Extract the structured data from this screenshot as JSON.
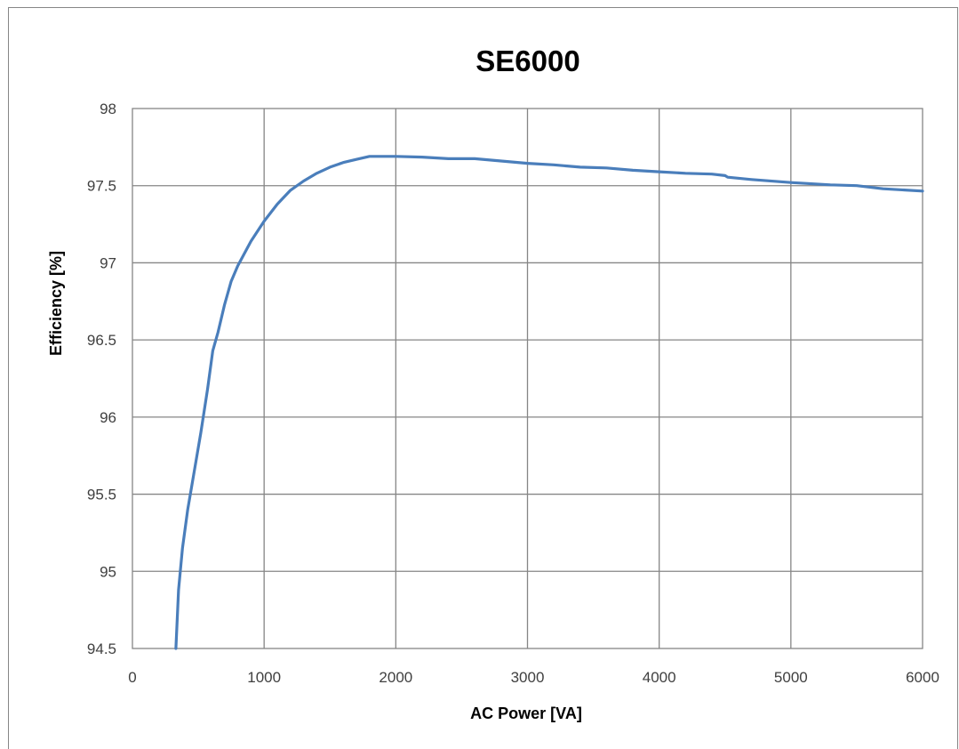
{
  "chart_data": {
    "type": "line",
    "title": "SE6000",
    "xlabel": "AC Power [VA]",
    "ylabel": "Efficiency [%]",
    "xlim": [
      0,
      6000
    ],
    "ylim": [
      94.5,
      98
    ],
    "x_ticks": [
      "0",
      "1000",
      "2000",
      "3000",
      "4000",
      "5000",
      "6000"
    ],
    "y_ticks": [
      "94.5",
      "95",
      "95.5",
      "96",
      "96.5",
      "97",
      "97.5",
      "98"
    ],
    "grid": true,
    "legend": "none",
    "colors": {
      "line": "#4a7ebb",
      "grid": "#868686"
    },
    "series": [
      {
        "x": [
          330,
          350,
          380,
          420,
          470,
          520,
          570,
          610,
          650,
          700,
          750,
          800,
          900,
          1000,
          1100,
          1200,
          1300,
          1400,
          1500,
          1600,
          1700,
          1800,
          1900,
          2000,
          2200,
          2400,
          2600,
          2800,
          3000,
          3200,
          3400,
          3600,
          3800,
          4000,
          4200,
          4400,
          4500,
          4520,
          4700,
          5000,
          5300,
          5500,
          5700,
          6000
        ],
        "y": [
          94.5,
          94.88,
          95.15,
          95.4,
          95.65,
          95.9,
          96.18,
          96.43,
          96.55,
          96.73,
          96.88,
          96.98,
          97.14,
          97.27,
          97.38,
          97.47,
          97.53,
          97.58,
          97.62,
          97.65,
          97.67,
          97.69,
          97.69,
          97.69,
          97.685,
          97.675,
          97.675,
          97.66,
          97.645,
          97.635,
          97.62,
          97.615,
          97.6,
          97.59,
          97.58,
          97.575,
          97.565,
          97.555,
          97.54,
          97.52,
          97.505,
          97.5,
          97.48,
          97.465
        ]
      }
    ]
  }
}
